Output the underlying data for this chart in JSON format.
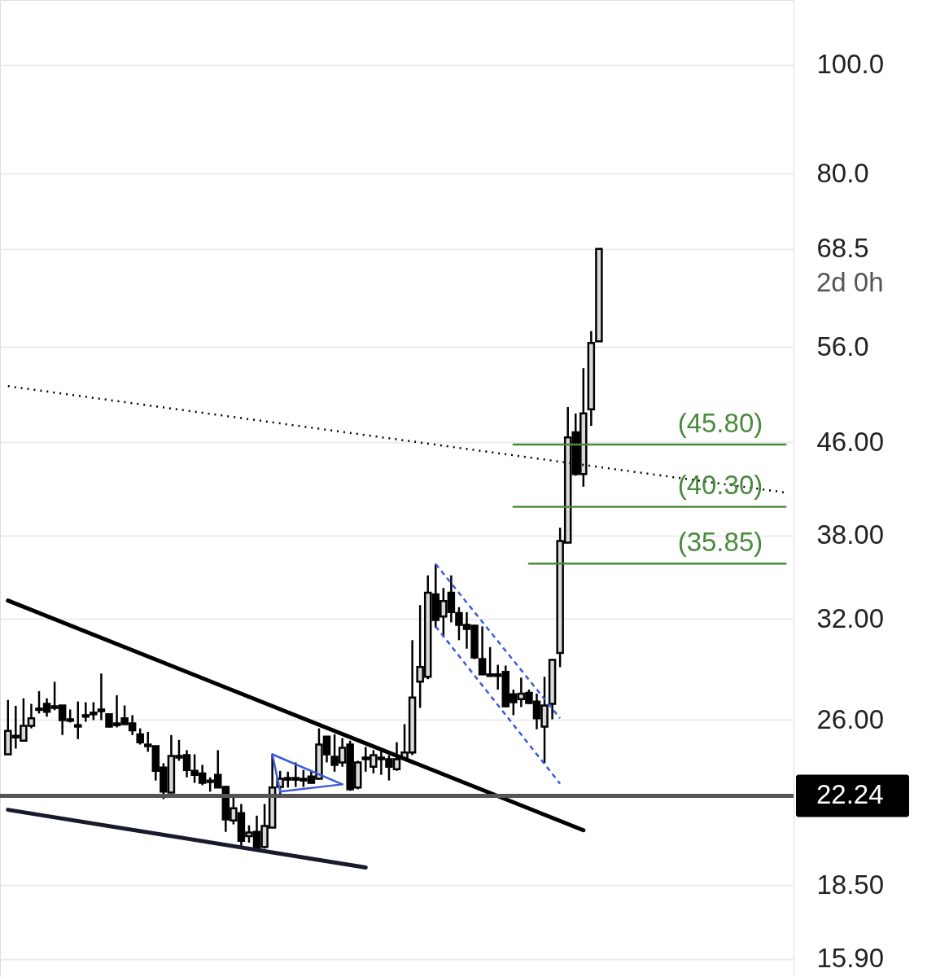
{
  "chart_data": {
    "type": "candlestick",
    "categories": [
      null,
      null,
      null,
      null,
      null,
      null,
      null,
      null,
      null,
      null,
      null,
      null,
      null,
      null,
      null,
      null,
      null,
      null,
      null,
      null,
      null,
      null,
      null,
      null,
      null,
      null,
      null,
      null,
      null,
      null,
      null,
      null,
      null,
      null,
      null,
      null,
      null,
      null,
      null,
      null,
      null,
      null,
      null,
      null,
      null,
      null,
      null,
      null,
      null,
      null,
      null,
      null,
      null,
      null,
      null,
      null,
      null,
      null,
      null,
      null,
      null,
      null,
      null,
      null,
      null,
      null,
      null,
      null,
      null,
      null,
      null,
      null,
      null,
      null,
      null,
      null,
      null,
      null,
      null,
      null,
      null,
      null,
      null,
      null,
      null,
      null,
      null,
      null,
      null,
      null,
      null,
      null,
      null,
      null,
      null,
      null,
      null,
      null,
      null,
      null,
      null
    ],
    "ohlc": [
      [
        24.22,
        27.09,
        24.2,
        25.41
      ],
      [
        25.08,
        26.76,
        24.51,
        25.16
      ],
      [
        24.91,
        27.18,
        24.91,
        25.68
      ],
      [
        25.68,
        26.87,
        25.55,
        26.08
      ],
      [
        26.54,
        27.58,
        26.34,
        26.61
      ],
      [
        26.87,
        27.18,
        26.17,
        26.43
      ],
      [
        26.74,
        28.12,
        26.52,
        26.65
      ],
      [
        26.78,
        26.8,
        25.2,
        25.99
      ],
      [
        26.03,
        26.56,
        25.86,
        25.95
      ],
      [
        25.64,
        27.0,
        24.99,
        25.72
      ],
      [
        26.17,
        26.96,
        25.9,
        26.25
      ],
      [
        26.3,
        26.96,
        25.99,
        26.39
      ],
      [
        26.47,
        28.6,
        25.99,
        26.56
      ],
      [
        26.3,
        26.35,
        25.6,
        25.64
      ],
      [
        25.81,
        27.35,
        25.6,
        25.72
      ],
      [
        26.08,
        26.78,
        25.75,
        25.77
      ],
      [
        25.81,
        26.25,
        25.2,
        25.45
      ],
      [
        25.24,
        25.55,
        24.71,
        24.83
      ],
      [
        24.71,
        25.36,
        24.35,
        24.63
      ],
      [
        24.63,
        24.65,
        22.95,
        23.41
      ],
      [
        23.57,
        23.78,
        22.09,
        22.43
      ],
      [
        22.39,
        25.2,
        22.37,
        24.14
      ],
      [
        24.06,
        24.95,
        23.9,
        24.14
      ],
      [
        24.18,
        24.43,
        23.1,
        23.45
      ],
      [
        23.41,
        24.22,
        22.84,
        23.22
      ],
      [
        23.29,
        23.7,
        22.73,
        22.84
      ],
      [
        22.95,
        23.1,
        22.43,
        22.88
      ],
      [
        23.22,
        24.43,
        22.6,
        22.62
      ],
      [
        22.65,
        22.7,
        20.65,
        21.18
      ],
      [
        21.14,
        22.28,
        20.97,
        21.68
      ],
      [
        21.46,
        21.87,
        19.95,
        20.27
      ],
      [
        20.47,
        20.93,
        20.2,
        20.62
      ],
      [
        20.65,
        21.35,
        19.9,
        19.92
      ],
      [
        20.02,
        21.87,
        19.95,
        20.9
      ],
      [
        20.83,
        24.22,
        20.8,
        22.62
      ],
      [
        22.65,
        23.41,
        22.28,
        23.03
      ],
      [
        22.99,
        23.37,
        22.62,
        23.07
      ],
      [
        22.99,
        23.82,
        22.65,
        23.07
      ],
      [
        22.95,
        23.45,
        22.65,
        23.03
      ],
      [
        23.14,
        23.37,
        22.8,
        22.84
      ],
      [
        23.03,
        25.55,
        23.0,
        24.71
      ],
      [
        25.12,
        25.15,
        23.82,
        24.22
      ],
      [
        24.1,
        25.24,
        23.37,
        23.7
      ],
      [
        23.82,
        25.04,
        23.61,
        24.55
      ],
      [
        24.71,
        24.91,
        22.47,
        22.54
      ],
      [
        22.62,
        23.9,
        22.54,
        23.82
      ],
      [
        23.98,
        24.59,
        23.37,
        24.06
      ],
      [
        23.61,
        24.43,
        23.29,
        24.18
      ],
      [
        23.98,
        24.39,
        23.22,
        24.06
      ],
      [
        23.98,
        24.18,
        22.95,
        23.61
      ],
      [
        23.49,
        24.83,
        23.41,
        23.98
      ],
      [
        24.02,
        25.77,
        24.0,
        24.31
      ],
      [
        24.31,
        30.63,
        24.18,
        27.22
      ],
      [
        28.12,
        32.92,
        26.65,
        28.98
      ],
      [
        28.41,
        35.0,
        28.27,
        33.77
      ],
      [
        33.66,
        35.83,
        31.41,
        31.93
      ],
      [
        32.16,
        34.1,
        30.82,
        33.2
      ],
      [
        33.77,
        35.0,
        31.77,
        32.45
      ],
      [
        32.39,
        32.78,
        30.63,
        31.61
      ],
      [
        31.61,
        32.45,
        30.1,
        31.35
      ],
      [
        31.56,
        31.6,
        29.46,
        29.56
      ],
      [
        29.46,
        31.51,
        28.5,
        28.55
      ],
      [
        28.55,
        30.2,
        28.41,
        28.46
      ],
      [
        28.46,
        29.12,
        27.67,
        28.55
      ],
      [
        28.7,
        29.07,
        26.7,
        26.74
      ],
      [
        27.4,
        27.67,
        26.25,
        26.96
      ],
      [
        27.13,
        28.36,
        26.69,
        27.44
      ],
      [
        27.49,
        27.67,
        26.87,
        26.92
      ],
      [
        27.0,
        27.44,
        25.5,
        26.08
      ],
      [
        25.64,
        28.41,
        23.78,
        26.78
      ],
      [
        26.87,
        29.45,
        26.03,
        29.41
      ],
      [
        29.84,
        38.6,
        28.98,
        37.56
      ],
      [
        37.44,
        49.48,
        37.4,
        46.48
      ],
      [
        46.97,
        48.83,
        42.96,
        43.1
      ],
      [
        43.1,
        53.6,
        42.0,
        48.83
      ],
      [
        49.24,
        57.85,
        47.6,
        56.44
      ],
      [
        56.63,
        68.5,
        56.63,
        68.5
      ],
      null,
      null,
      null,
      null,
      null,
      null,
      null,
      null,
      null,
      null,
      null,
      null,
      null,
      null,
      null,
      null,
      null,
      null,
      null,
      null,
      null,
      null,
      null,
      null
    ],
    "series": [
      {
        "type": "line",
        "color": "#000000",
        "line_style": "solid",
        "values": [
          33.23,
          null,
          null,
          null,
          null,
          null,
          null,
          null,
          null,
          null,
          null,
          null,
          null,
          null,
          null,
          null,
          null,
          null,
          null,
          null,
          null,
          null,
          null,
          null,
          null,
          null,
          null,
          null,
          null,
          null,
          null,
          null,
          null,
          null,
          null,
          null,
          null,
          null,
          null,
          null,
          null,
          null,
          null,
          null,
          null,
          null,
          null,
          null,
          null,
          null,
          null,
          null,
          null,
          null,
          null,
          null,
          null,
          null,
          null,
          null,
          null,
          null,
          null,
          null,
          null,
          null,
          null,
          null,
          null,
          null,
          null,
          null,
          null,
          null,
          20.72,
          null,
          null,
          null,
          null,
          null,
          null,
          null,
          null,
          null,
          null,
          null,
          null,
          null,
          null,
          null,
          null,
          null,
          null,
          null,
          null,
          null,
          null,
          null,
          null,
          null,
          null
        ]
      },
      {
        "type": "line",
        "color": "#1a1a2e",
        "line_style": "solid",
        "values": [
          21.61,
          null,
          null,
          null,
          null,
          null,
          null,
          null,
          null,
          null,
          null,
          null,
          null,
          null,
          null,
          null,
          null,
          null,
          null,
          null,
          null,
          null,
          null,
          null,
          null,
          null,
          null,
          null,
          null,
          null,
          null,
          null,
          null,
          null,
          null,
          null,
          null,
          null,
          null,
          null,
          null,
          null,
          null,
          null,
          null,
          null,
          19.19,
          null,
          null,
          null,
          null,
          null,
          null,
          null,
          null,
          null,
          null,
          null,
          null,
          null,
          null,
          null,
          null,
          null,
          null,
          null,
          null,
          null,
          null,
          null,
          null,
          null,
          null,
          null,
          null,
          null,
          null,
          null,
          null,
          null,
          null,
          null,
          null,
          null,
          null,
          null,
          null,
          null,
          null,
          null,
          null,
          null,
          null,
          null,
          null,
          null,
          null,
          null,
          null,
          null,
          null
        ]
      },
      {
        "type": "line",
        "color": "#000000",
        "line_style": "dotted",
        "values": [
          51.65,
          null,
          null,
          null,
          null,
          null,
          null,
          null,
          null,
          null,
          null,
          null,
          null,
          null,
          null,
          null,
          null,
          null,
          null,
          null,
          null,
          null,
          null,
          null,
          null,
          null,
          null,
          null,
          null,
          null,
          null,
          null,
          null,
          null,
          null,
          null,
          null,
          null,
          null,
          null,
          null,
          null,
          null,
          null,
          null,
          null,
          null,
          null,
          null,
          null,
          null,
          null,
          null,
          null,
          null,
          null,
          null,
          null,
          null,
          null,
          null,
          null,
          null,
          null,
          null,
          null,
          null,
          null,
          null,
          null,
          null,
          null,
          null,
          null,
          null,
          null,
          null,
          null,
          null,
          null,
          null,
          null,
          null,
          null,
          null,
          null,
          null,
          null,
          null,
          null,
          null,
          null,
          null,
          null,
          null,
          null,
          null,
          null,
          null,
          null,
          41.5
        ]
      },
      {
        "type": "line",
        "color": "#3b5bdb",
        "line_style": "solid",
        "values": [
          null,
          null,
          null,
          null,
          null,
          null,
          null,
          null,
          null,
          null,
          null,
          null,
          null,
          null,
          null,
          null,
          null,
          null,
          null,
          null,
          null,
          null,
          null,
          null,
          null,
          null,
          null,
          null,
          null,
          null,
          null,
          null,
          null,
          null,
          24.22,
          null,
          null,
          null,
          null,
          null,
          null,
          null,
          null,
          22.77,
          null,
          null,
          null,
          null,
          null,
          null,
          null,
          null,
          null,
          null,
          null,
          null,
          null,
          null,
          null,
          null,
          null,
          null,
          null,
          null,
          null,
          null,
          null,
          null,
          null,
          null,
          null,
          null,
          null,
          null,
          null,
          null,
          null,
          null,
          null,
          null,
          null,
          null,
          null,
          null,
          null,
          null,
          null,
          null,
          null,
          null,
          null,
          null,
          null,
          null,
          null,
          null,
          null,
          null,
          null,
          null,
          null
        ]
      },
      {
        "type": "line",
        "color": "#3b5bdb",
        "line_style": "solid",
        "values": [
          null,
          null,
          null,
          null,
          null,
          null,
          null,
          null,
          null,
          null,
          null,
          null,
          null,
          null,
          null,
          null,
          null,
          null,
          null,
          null,
          null,
          null,
          null,
          null,
          null,
          null,
          null,
          null,
          null,
          null,
          null,
          null,
          null,
          null,
          null,
          22.43,
          null,
          null,
          null,
          null,
          null,
          null,
          null,
          22.77,
          null,
          null,
          null,
          null,
          null,
          null,
          null,
          null,
          null,
          null,
          null,
          null,
          null,
          null,
          null,
          null,
          null,
          null,
          null,
          null,
          null,
          null,
          null,
          null,
          null,
          null,
          null,
          null,
          null,
          null,
          null,
          null,
          null,
          null,
          null,
          null,
          null,
          null,
          null,
          null,
          null,
          null,
          null,
          null,
          null,
          null,
          null,
          null,
          null,
          null,
          null,
          null,
          null,
          null,
          null,
          null,
          null
        ]
      },
      {
        "type": "line",
        "color": "#3b5bdb",
        "line_style": "solid",
        "values": [
          null,
          null,
          null,
          null,
          null,
          null,
          null,
          null,
          null,
          null,
          null,
          null,
          null,
          null,
          null,
          null,
          null,
          null,
          null,
          null,
          null,
          null,
          null,
          null,
          null,
          null,
          null,
          null,
          null,
          null,
          null,
          null,
          null,
          null,
          24.22,
          22.43,
          null,
          null,
          null,
          null,
          null,
          null,
          null,
          null,
          null,
          null,
          null,
          null,
          null,
          null,
          null,
          null,
          null,
          null,
          null,
          null,
          null,
          null,
          null,
          null,
          null,
          null,
          null,
          null,
          null,
          null,
          null,
          null,
          null,
          null,
          null,
          null,
          null,
          null,
          null,
          null,
          null,
          null,
          null,
          null,
          null,
          null,
          null,
          null,
          null,
          null,
          null,
          null,
          null,
          null,
          null,
          null,
          null,
          null,
          null,
          null,
          null,
          null,
          null,
          null,
          null
        ]
      },
      {
        "type": "line",
        "color": "#3b5bdb",
        "line_style": "dashed",
        "values": [
          null,
          null,
          null,
          null,
          null,
          null,
          null,
          null,
          null,
          null,
          null,
          null,
          null,
          null,
          null,
          null,
          null,
          null,
          null,
          null,
          null,
          null,
          null,
          null,
          null,
          null,
          null,
          null,
          null,
          null,
          null,
          null,
          null,
          null,
          null,
          null,
          null,
          null,
          null,
          null,
          null,
          null,
          null,
          null,
          null,
          null,
          null,
          null,
          null,
          null,
          null,
          null,
          null,
          null,
          null,
          35.83,
          null,
          null,
          null,
          null,
          null,
          null,
          null,
          null,
          null,
          null,
          null,
          null,
          null,
          null,
          null,
          26.08,
          null,
          null,
          null,
          null,
          null,
          null,
          null,
          null,
          null,
          null,
          null,
          null,
          null,
          null,
          null,
          null,
          null,
          null,
          null,
          null,
          null,
          null,
          null,
          null,
          null,
          null,
          null,
          null,
          null
        ]
      },
      {
        "type": "line",
        "color": "#3b5bdb",
        "line_style": "dashed",
        "values": [
          null,
          null,
          null,
          null,
          null,
          null,
          null,
          null,
          null,
          null,
          null,
          null,
          null,
          null,
          null,
          null,
          null,
          null,
          null,
          null,
          null,
          null,
          null,
          null,
          null,
          null,
          null,
          null,
          null,
          null,
          null,
          null,
          null,
          null,
          null,
          null,
          null,
          null,
          null,
          null,
          null,
          null,
          null,
          null,
          null,
          null,
          null,
          null,
          null,
          null,
          null,
          null,
          null,
          null,
          null,
          31.51,
          null,
          null,
          null,
          null,
          null,
          null,
          null,
          null,
          null,
          null,
          null,
          null,
          null,
          null,
          null,
          22.8,
          null,
          null,
          null,
          null,
          null,
          null,
          null,
          null,
          null,
          null,
          null,
          null,
          null,
          null,
          null,
          null,
          null,
          null,
          null,
          null,
          null,
          null,
          null,
          null,
          null,
          null,
          null,
          null,
          null
        ]
      },
      {
        "type": "line",
        "name": "(45.80)",
        "color": "#4a8a3c",
        "line_style": "solid",
        "values": [
          null,
          null,
          null,
          null,
          null,
          null,
          null,
          null,
          null,
          null,
          null,
          null,
          null,
          null,
          null,
          null,
          null,
          null,
          null,
          null,
          null,
          null,
          null,
          null,
          null,
          null,
          null,
          null,
          null,
          null,
          null,
          null,
          null,
          null,
          null,
          null,
          null,
          null,
          null,
          null,
          null,
          null,
          null,
          null,
          null,
          null,
          null,
          null,
          null,
          null,
          null,
          null,
          null,
          null,
          null,
          null,
          null,
          null,
          null,
          null,
          null,
          null,
          null,
          null,
          null,
          45.8,
          null,
          null,
          null,
          null,
          null,
          null,
          null,
          null,
          null,
          null,
          null,
          null,
          null,
          null,
          null,
          null,
          null,
          null,
          null,
          null,
          null,
          null,
          null,
          null,
          null,
          null,
          null,
          null,
          null,
          null,
          null,
          null,
          null,
          null,
          45.8
        ]
      },
      {
        "type": "line",
        "name": "(40.30)",
        "color": "#4a8a3c",
        "line_style": "solid",
        "values": [
          null,
          null,
          null,
          null,
          null,
          null,
          null,
          null,
          null,
          null,
          null,
          null,
          null,
          null,
          null,
          null,
          null,
          null,
          null,
          null,
          null,
          null,
          null,
          null,
          null,
          null,
          null,
          null,
          null,
          null,
          null,
          null,
          null,
          null,
          null,
          null,
          null,
          null,
          null,
          null,
          null,
          null,
          null,
          null,
          null,
          null,
          null,
          null,
          null,
          null,
          null,
          null,
          null,
          null,
          null,
          null,
          null,
          null,
          null,
          null,
          null,
          null,
          null,
          null,
          null,
          40.3,
          null,
          null,
          null,
          null,
          null,
          null,
          null,
          null,
          null,
          null,
          null,
          null,
          null,
          null,
          null,
          null,
          null,
          null,
          null,
          null,
          null,
          null,
          null,
          null,
          null,
          null,
          null,
          null,
          null,
          null,
          null,
          null,
          null,
          null,
          40.3
        ]
      },
      {
        "type": "line",
        "name": "(35.85)",
        "color": "#4a8a3c",
        "line_style": "solid",
        "values": [
          null,
          null,
          null,
          null,
          null,
          null,
          null,
          null,
          null,
          null,
          null,
          null,
          null,
          null,
          null,
          null,
          null,
          null,
          null,
          null,
          null,
          null,
          null,
          null,
          null,
          null,
          null,
          null,
          null,
          null,
          null,
          null,
          null,
          null,
          null,
          null,
          null,
          null,
          null,
          null,
          null,
          null,
          null,
          null,
          null,
          null,
          null,
          null,
          null,
          null,
          null,
          null,
          null,
          null,
          null,
          null,
          null,
          null,
          null,
          null,
          null,
          null,
          null,
          null,
          null,
          null,
          null,
          35.85,
          null,
          null,
          null,
          null,
          null,
          null,
          null,
          null,
          null,
          null,
          null,
          null,
          null,
          null,
          null,
          null,
          null,
          null,
          null,
          null,
          null,
          null,
          null,
          null,
          null,
          null,
          null,
          null,
          null,
          null,
          null,
          null,
          35.85
        ]
      }
    ],
    "ref_lines": [
      {
        "axis": "y",
        "value": 22.24,
        "label": "22.24",
        "color": "#555555"
      }
    ],
    "annotations": [
      "2d 0h"
    ],
    "ylim": [
      15.32,
      114.3
    ],
    "yticks": [
      {
        "value": 100,
        "label": "100.0"
      },
      {
        "value": 80,
        "label": "80.0"
      },
      {
        "value": 68.5,
        "label": "68.5"
      },
      {
        "value": 56,
        "label": "56.0"
      },
      {
        "value": 46,
        "label": "46.00"
      },
      {
        "value": 38,
        "label": "38.00"
      },
      {
        "value": 32,
        "label": "32.00"
      },
      {
        "value": 26,
        "label": "26.00"
      },
      {
        "value": 18.5,
        "label": "18.50"
      },
      {
        "value": 15.9,
        "label": "15.90"
      }
    ],
    "log": "y",
    "grid": "y",
    "tick_labels": "y"
  }
}
